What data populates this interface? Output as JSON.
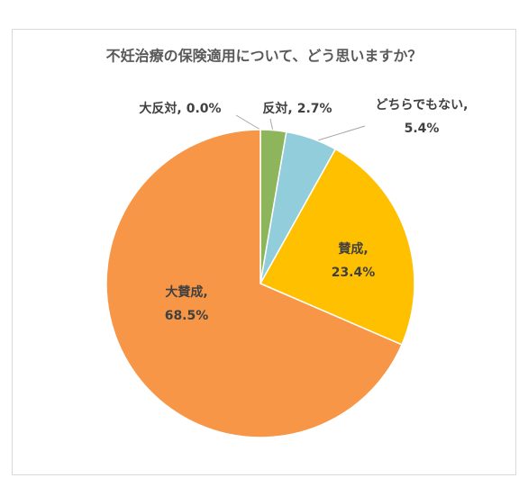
{
  "chart_data": {
    "type": "pie",
    "title": "不妊治療の保険適用について、どう思いますか？",
    "categories": [
      "大反対,",
      "反対,",
      "どちらでもない,",
      "賛成,",
      "大賛成,"
    ],
    "values": [
      0.0,
      2.7,
      5.4,
      23.4,
      68.5
    ],
    "value_labels": [
      "0.0%",
      "2.7%",
      "5.4%",
      "23.4%",
      "68.5%"
    ],
    "colors": [
      "#4472c4",
      "#8db55b",
      "#92cddc",
      "#ffc000",
      "#f79646"
    ]
  }
}
